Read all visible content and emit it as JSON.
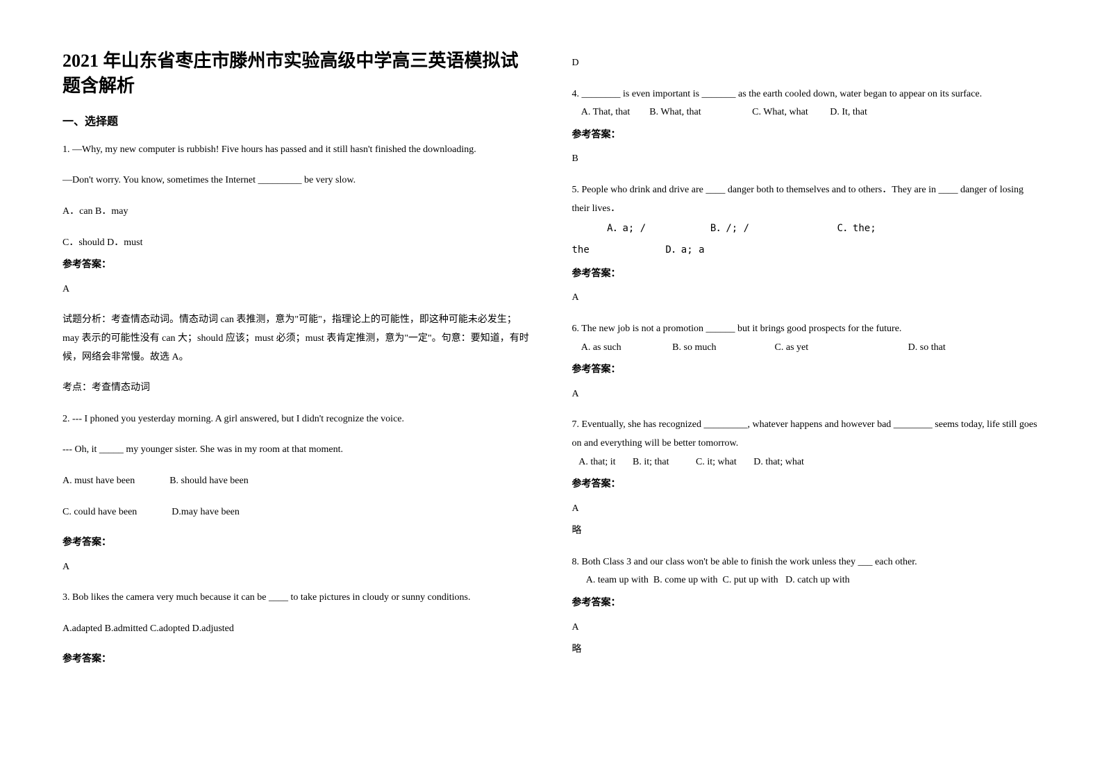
{
  "document": {
    "title": "2021 年山东省枣庄市滕州市实验高级中学高三英语模拟试题含解析",
    "section_heading": "一、选择题",
    "answer_label": "参考答案：",
    "omit_text": "略",
    "questions": [
      {
        "number": "1.",
        "lines": [
          "—Why, my new computer is rubbish! Five hours has passed and it still hasn't finished the downloading.",
          "—Don't worry. You know, sometimes the Internet _________ be very slow.",
          "A．can    B．may",
          "C．should    D．must"
        ],
        "answer": "A",
        "analysis": [
          "试题分析：考查情态动词。情态动词 can 表推测，意为\"可能\"，指理论上的可能性，即这种可能未必发生；may 表示的可能性没有 can 大；should 应该；must 必须；must 表肯定推测，意为\"一定\"。句意：要知道，有时候，网络会非常慢。故选 A。",
          "考点：考查情态动词"
        ]
      },
      {
        "number": "2.",
        "lines": [
          "--- I phoned you yesterday morning. A girl answered, but I didn't recognize the voice.",
          "--- Oh, it _____ my younger sister. She was in my room at that moment."
        ],
        "option_rows": [
          [
            "A. must have been",
            "B. should have been"
          ],
          [
            "C. could have been",
            "D.may have been"
          ]
        ],
        "answer": "A"
      },
      {
        "number": "3.",
        "lines": [
          "Bob likes the camera very much because it can be ____ to take pictures in cloudy or sunny conditions.",
          "A.adapted    B.admitted    C.adopted    D.adjusted"
        ],
        "answer": "D"
      },
      {
        "number": "4.",
        "lines": [
          "________ is even important is _______ as the earth cooled down, water began to appear on its surface."
        ],
        "options_inline": "    A. That, that        B. What, that                     C. What, what         D. It, that",
        "answer": "B"
      },
      {
        "number": "5.",
        "lines": [
          "People who drink and drive are ____ danger both to themselves and to others．They are in ____ danger of losing their lives．"
        ],
        "options_mono": "      A．a; /           B．/; /               C．the;\nthe             D．a; a",
        "answer": "A"
      },
      {
        "number": "6.",
        "lines": [
          "The new job is not a promotion ______ but it brings good prospects for the future."
        ],
        "options_inline": "    A. as such                     B. so much                        C. as yet                                         D. so that",
        "answer": "A"
      },
      {
        "number": "7.",
        "lines": [
          "Eventually, she has recognized _________, whatever happens and however bad ________ seems today, life still goes on and everything will be better tomorrow."
        ],
        "options_inline": "   A. that; it       B. it; that           C. it; what       D. that; what",
        "answer": "A",
        "omit": true
      },
      {
        "number": "8.",
        "lines": [
          "Both Class 3 and our class won't be able to finish the work unless they ___ each other."
        ],
        "options_inline": "      A. team up with  B. come up with  C. put up with   D. catch up with",
        "answer": "A",
        "omit": true
      }
    ]
  }
}
